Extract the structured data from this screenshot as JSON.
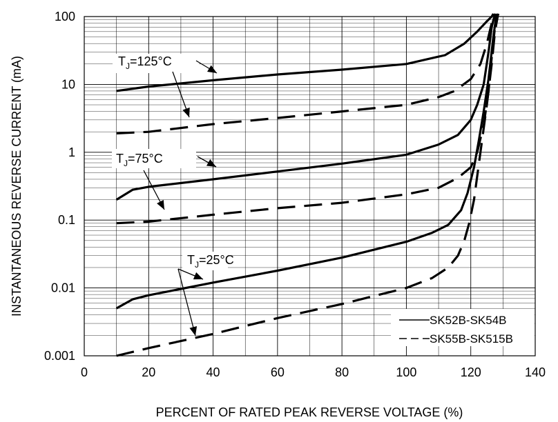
{
  "chart_data": {
    "type": "line",
    "title": "",
    "xlabel": "PERCENT OF RATED PEAK REVERSE VOLTAGE (%)",
    "ylabel": "INSTANTANEOUS REVERSE CURRENT (mA)",
    "xlim": [
      0,
      140
    ],
    "ylim": [
      0.001,
      100
    ],
    "yscale": "log",
    "grid": true,
    "legend_position": "bottom-right",
    "x_ticks": [
      "0",
      "20",
      "40",
      "60",
      "80",
      "100",
      "120",
      "140"
    ],
    "y_ticks": [
      "0.001",
      "0.01",
      "0.1",
      "1",
      "10",
      "100"
    ],
    "series": [
      {
        "name": "SK52B-SK54B",
        "style": "solid",
        "group": "T_J=125°C",
        "x": [
          10,
          20,
          40,
          60,
          80,
          100,
          112,
          118,
          122,
          125,
          126.5,
          127
        ],
        "y": [
          8,
          9.3,
          11.5,
          14,
          16.5,
          20,
          27,
          40,
          60,
          85,
          100,
          110
        ]
      },
      {
        "name": "SK55B-SK515B",
        "style": "dashed",
        "group": "T_J=125°C",
        "x": [
          10,
          20,
          40,
          60,
          80,
          100,
          110,
          115,
          120,
          123,
          125,
          126.5,
          127.5
        ],
        "y": [
          1.9,
          2,
          2.6,
          3.2,
          4,
          5,
          6.5,
          8,
          12,
          20,
          40,
          80,
          110
        ]
      },
      {
        "name": "SK52B-SK54B",
        "style": "solid",
        "group": "T_J=75°C",
        "x": [
          10,
          15,
          20,
          40,
          60,
          80,
          100,
          110,
          116,
          120,
          122,
          124,
          125.5,
          126.5,
          127.5
        ],
        "y": [
          0.2,
          0.28,
          0.31,
          0.4,
          0.52,
          0.68,
          0.92,
          1.3,
          1.8,
          3,
          5,
          10,
          30,
          70,
          110
        ]
      },
      {
        "name": "SK55B-SK515B",
        "style": "dashed",
        "group": "T_J=75°C",
        "x": [
          10,
          20,
          40,
          60,
          80,
          100,
          110,
          116,
          120,
          122,
          124,
          125.5,
          126.5,
          127.5,
          128.5
        ],
        "y": [
          0.09,
          0.095,
          0.12,
          0.15,
          0.18,
          0.24,
          0.3,
          0.42,
          0.6,
          1,
          2.5,
          8,
          25,
          70,
          110
        ]
      },
      {
        "name": "SK52B-SK54B",
        "style": "solid",
        "group": "T_J=25°C",
        "x": [
          10,
          15,
          20,
          40,
          60,
          80,
          100,
          108,
          113,
          117,
          119,
          121,
          122.5,
          124,
          125.5,
          127,
          128
        ],
        "y": [
          0.005,
          0.0068,
          0.0078,
          0.012,
          0.018,
          0.028,
          0.048,
          0.065,
          0.085,
          0.14,
          0.25,
          0.6,
          1.5,
          4,
          12,
          50,
          110
        ]
      },
      {
        "name": "SK55B-SK515B",
        "style": "dashed",
        "group": "T_J=25°C",
        "x": [
          10,
          20,
          40,
          60,
          80,
          100,
          108,
          113,
          116,
          118,
          119.5,
          121,
          123,
          125,
          126.5,
          127.5,
          128.5
        ],
        "y": [
          0.001,
          0.0013,
          0.0021,
          0.0036,
          0.0058,
          0.01,
          0.014,
          0.02,
          0.03,
          0.05,
          0.09,
          0.2,
          1,
          5,
          20,
          60,
          110
        ]
      }
    ],
    "annotations": [
      {
        "base": "T",
        "sub": "J",
        "rest": "=125°C"
      },
      {
        "base": "T",
        "sub": "J",
        "rest": "=75°C"
      },
      {
        "base": "T",
        "sub": "J",
        "rest": "=25°C"
      }
    ],
    "legend": [
      {
        "label": "SK52B-SK54B",
        "style": "solid"
      },
      {
        "label": "SK55B-SK515B",
        "style": "dashed"
      }
    ]
  },
  "colors": {
    "line": "#000000",
    "grid": "#000000",
    "background": "#ffffff"
  }
}
